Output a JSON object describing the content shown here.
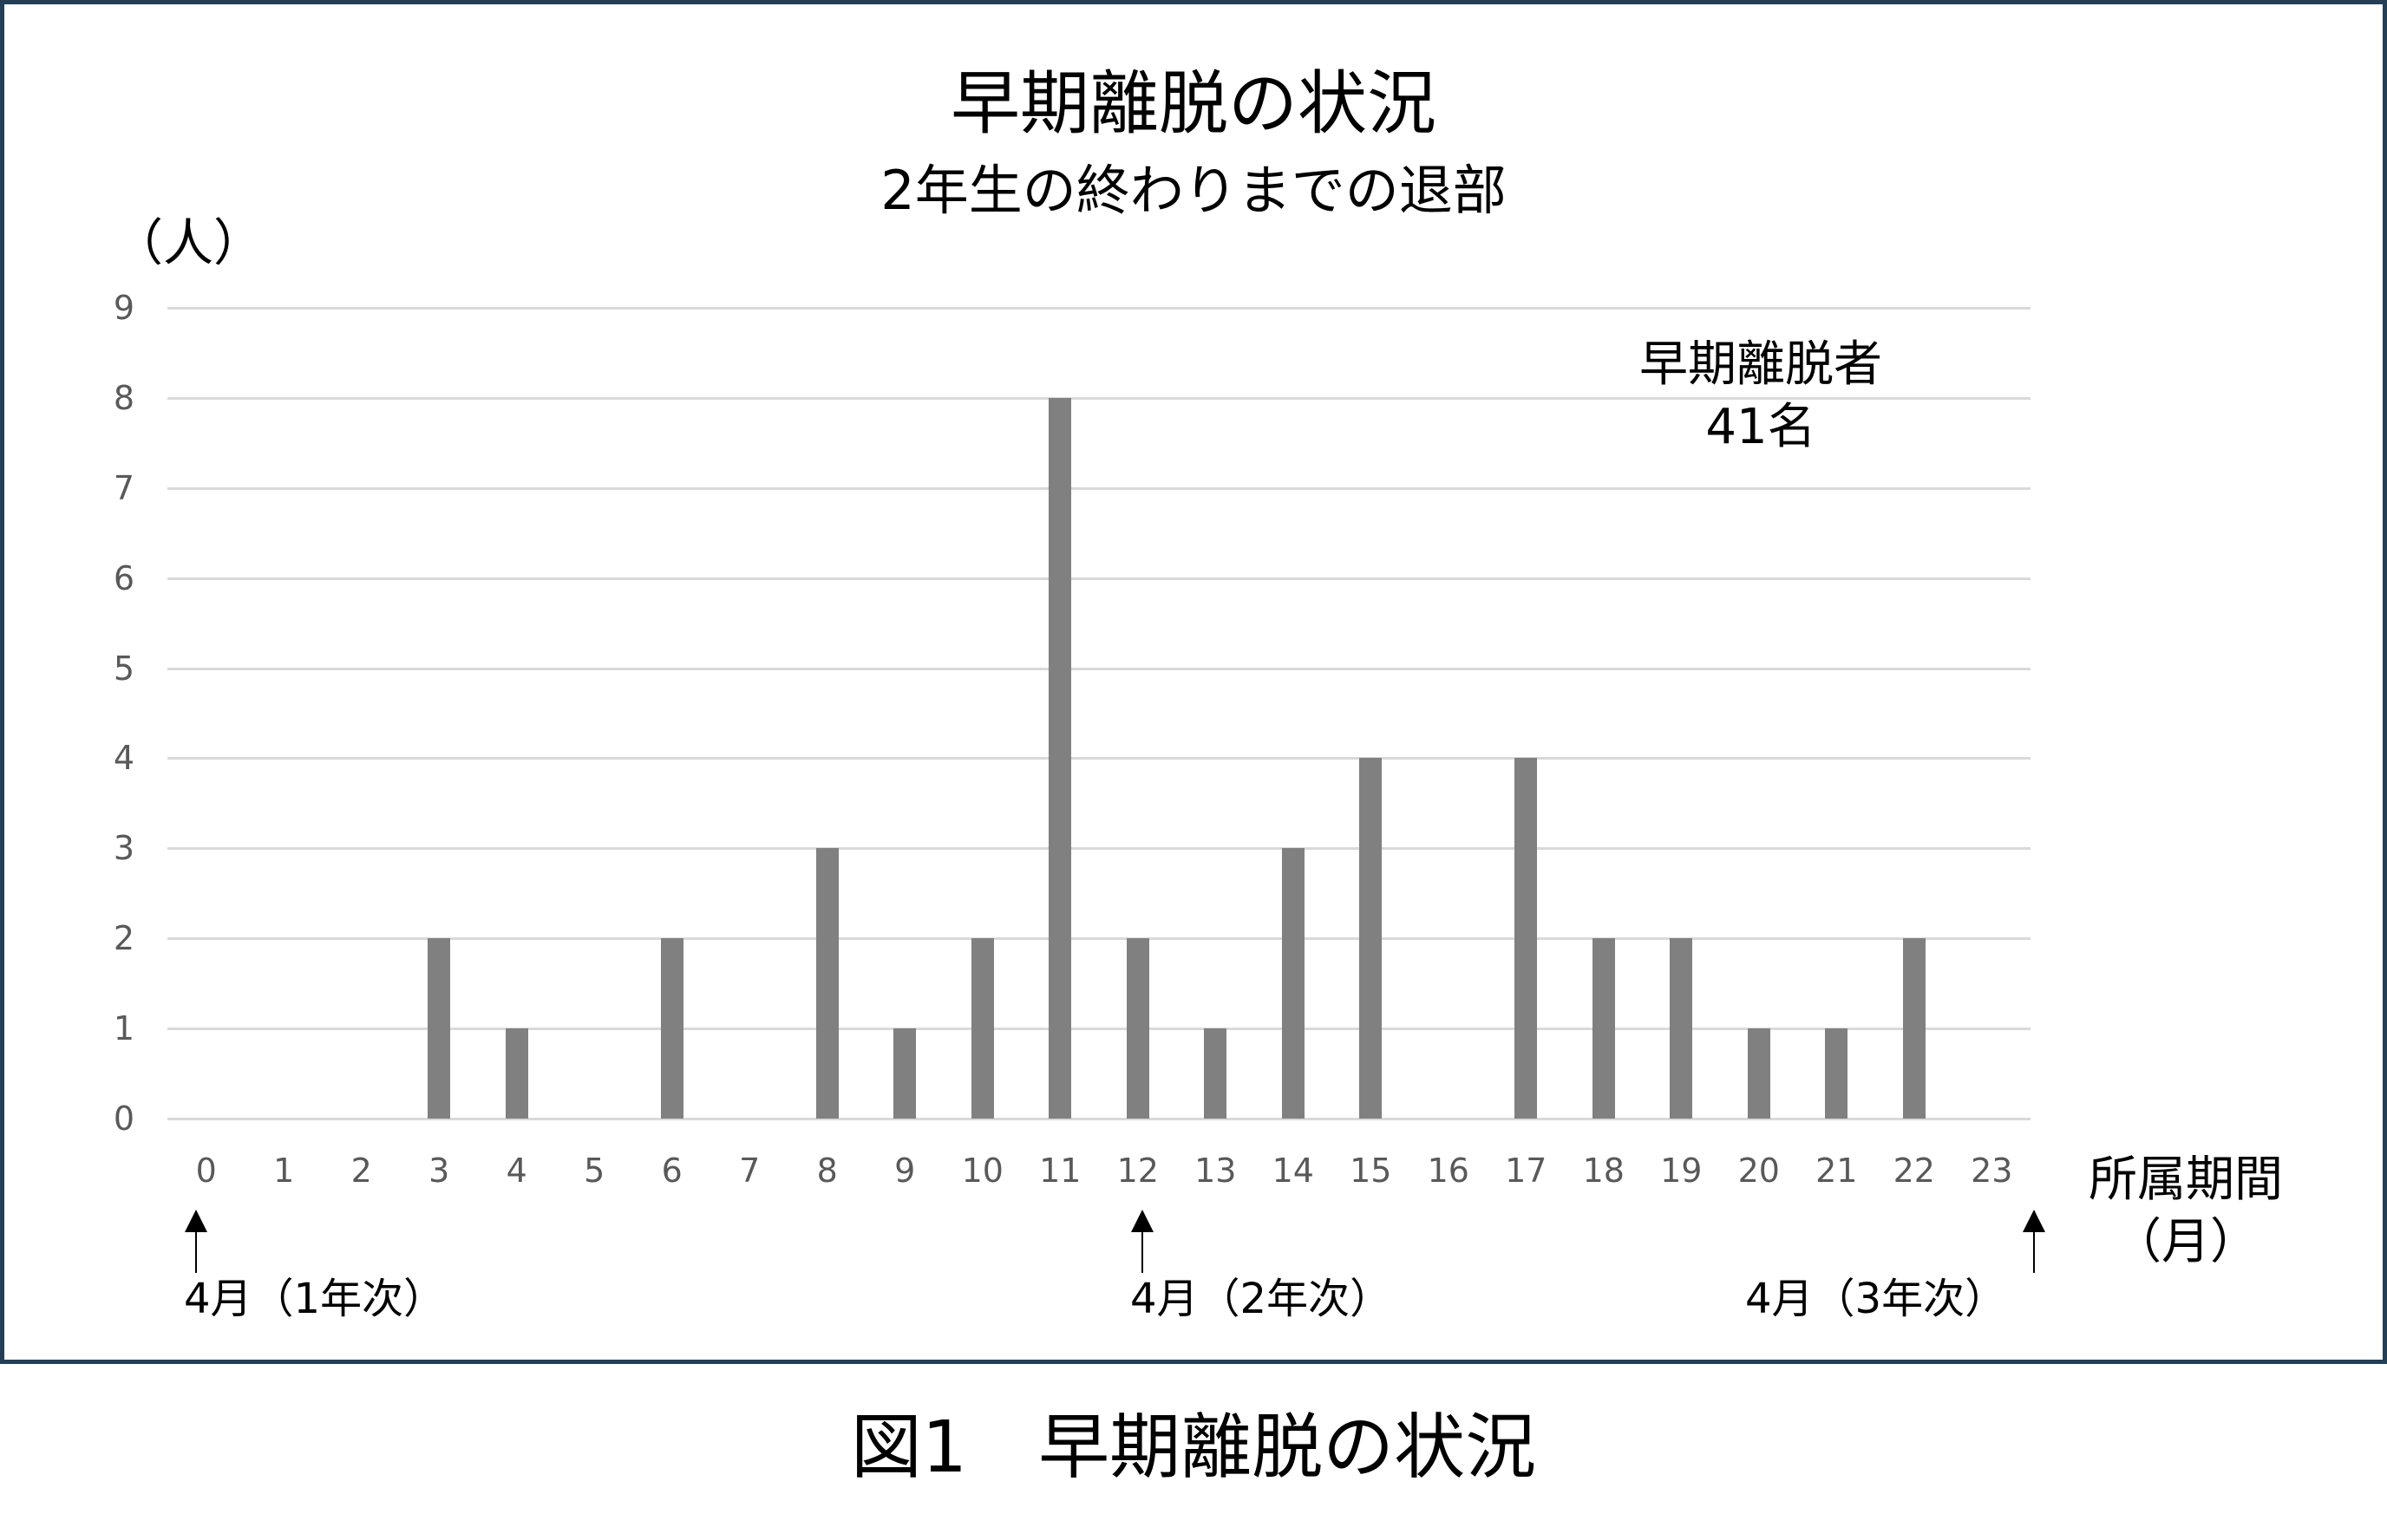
{
  "chart_data": {
    "type": "bar",
    "title": "早期離脱の状況",
    "subtitle": "2年生の終わりまでの退部",
    "xlabel": "所属期間（月）",
    "ylabel": "（人）",
    "ylim": [
      0,
      9
    ],
    "yticks": [
      0,
      1,
      2,
      3,
      4,
      5,
      6,
      7,
      8,
      9
    ],
    "grid": true,
    "legend": "none",
    "categories": [
      "0",
      "1",
      "2",
      "3",
      "4",
      "5",
      "6",
      "7",
      "8",
      "9",
      "10",
      "11",
      "12",
      "13",
      "14",
      "15",
      "16",
      "17",
      "18",
      "19",
      "20",
      "21",
      "22",
      "23"
    ],
    "values": [
      0,
      0,
      0,
      2,
      1,
      0,
      2,
      0,
      3,
      1,
      2,
      8,
      2,
      1,
      3,
      4,
      0,
      4,
      2,
      2,
      1,
      1,
      2,
      0
    ],
    "annotations": [
      {
        "text": "早期離脱者",
        "subtext": "41名"
      },
      {
        "text": "4月（1年次）",
        "at_category": 0
      },
      {
        "text": "4月（2年次）",
        "at_category": 12
      },
      {
        "text": "4月（3年次）",
        "at_category": 24
      }
    ],
    "bar_color": "#808080"
  },
  "header": {
    "title": "早期離脱の状況",
    "subtitle": "2年生の終わりまでの退部"
  },
  "axes": {
    "y_unit": "（人）",
    "x_label_line1": "所属期間",
    "x_label_line2": "（月）"
  },
  "annotation": {
    "line1": "早期離脱者",
    "line2": "41名"
  },
  "markers": [
    {
      "label": "4月（1年次）"
    },
    {
      "label": "4月（2年次）"
    },
    {
      "label": "4月（3年次）"
    }
  ],
  "caption": "図1　早期離脱の状況",
  "colors": {
    "frame": "#243f55",
    "bar": "#808080",
    "grid": "#d9d9d9",
    "tick_text": "#595959"
  }
}
